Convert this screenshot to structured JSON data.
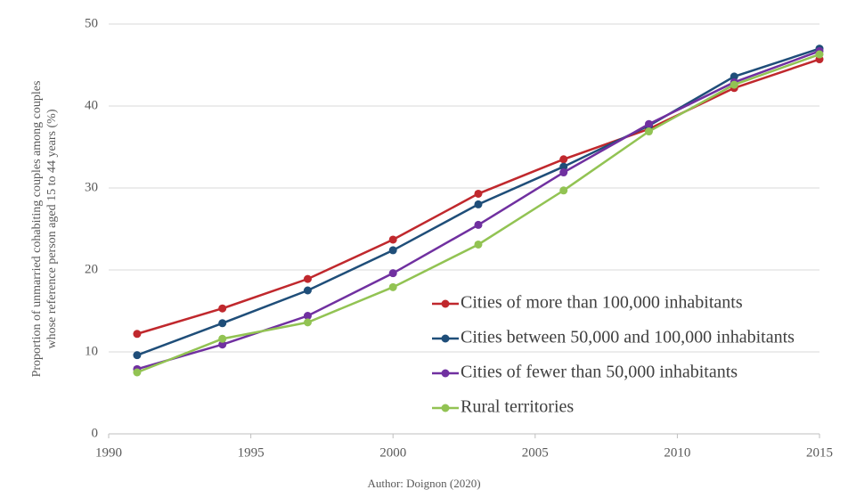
{
  "chart_data": {
    "type": "line",
    "y_label": "Proportion of unmarried cohabiting couples among couples whose reference  person aged 15 to 44 years (%)",
    "source": "Author: Doignon (2020)",
    "x": [
      1991,
      1994,
      1997,
      2000,
      2003,
      2006,
      2009,
      2012,
      2015
    ],
    "xlim": [
      1990,
      2015
    ],
    "xticks": [
      1990,
      1995,
      2000,
      2005,
      2010,
      2015
    ],
    "ylim": [
      0,
      50
    ],
    "yticks": [
      0,
      10,
      20,
      30,
      40,
      50
    ],
    "grid": true,
    "legend_position": "lower right",
    "series": [
      {
        "name": "Cities of more than 100,000 inhabitants",
        "color": "#c0282d",
        "values": [
          12.2,
          15.3,
          18.9,
          23.7,
          29.3,
          33.5,
          37.2,
          42.2,
          45.7
        ]
      },
      {
        "name": "Cities between 50,000 and 100,000 inhabitants",
        "color": "#1f4e79",
        "values": [
          9.6,
          13.5,
          17.5,
          22.4,
          28.0,
          32.6,
          37.6,
          43.6,
          47.0
        ]
      },
      {
        "name": "Cities of fewer than 50,000 inhabitants",
        "color": "#7030a0",
        "values": [
          7.9,
          10.9,
          14.4,
          19.6,
          25.5,
          31.9,
          37.8,
          42.9,
          46.7
        ]
      },
      {
        "name": "Rural territories",
        "color": "#92c353",
        "values": [
          7.5,
          11.6,
          13.6,
          17.9,
          23.1,
          29.7,
          36.9,
          42.6,
          46.3
        ]
      }
    ]
  }
}
